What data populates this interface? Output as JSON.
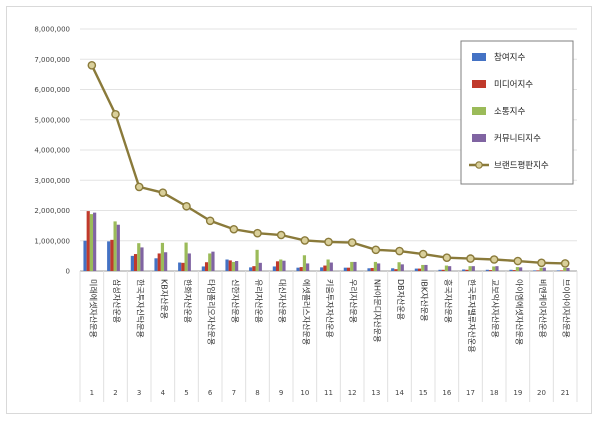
{
  "chart_data": {
    "type": "bar",
    "categories": [
      "미래에셋자산운용",
      "삼성자산운용",
      "한국투자신탁운용",
      "KB자산운용",
      "한화자산운용",
      "타임폴리오자산운용",
      "신한자산운용",
      "유리자산운용",
      "대신자산운용",
      "에셋플러스자산운용",
      "키움투자자산운용",
      "우리자산운용",
      "NH아문디자산운용",
      "DB자산운용",
      "IBK자산운용",
      "흥국자산운용",
      "한국투자밸류자산운용",
      "교보악사자산운용",
      "아이엠에셋자산운용",
      "비엔케이자산운용",
      "브이아이자산운용"
    ],
    "ranks": [
      "1",
      "2",
      "3",
      "4",
      "5",
      "6",
      "7",
      "8",
      "9",
      "10",
      "11",
      "12",
      "13",
      "14",
      "15",
      "16",
      "17",
      "18",
      "19",
      "20",
      "21"
    ],
    "yticks": [
      "0",
      "1,000,000",
      "2,000,000",
      "3,000,000",
      "4,000,000",
      "5,000,000",
      "6,000,000",
      "7,000,000",
      "8,000,000"
    ],
    "ylim": [
      0,
      8000000
    ],
    "series": [
      {
        "name": "참여지수",
        "color": "#4472c4",
        "values": [
          1000000,
          980000,
          500000,
          420000,
          280000,
          150000,
          380000,
          120000,
          150000,
          110000,
          120000,
          110000,
          90000,
          90000,
          80000,
          40000,
          50000,
          40000,
          40000,
          20000,
          20000
        ]
      },
      {
        "name": "미디어지수",
        "color": "#c0392b",
        "values": [
          1980000,
          1030000,
          560000,
          580000,
          270000,
          290000,
          350000,
          160000,
          320000,
          130000,
          180000,
          110000,
          100000,
          60000,
          80000,
          40000,
          40000,
          30000,
          30000,
          20000,
          20000
        ]
      },
      {
        "name": "소통지수",
        "color": "#9bbb59",
        "values": [
          1880000,
          1640000,
          920000,
          930000,
          940000,
          580000,
          300000,
          700000,
          380000,
          520000,
          380000,
          300000,
          300000,
          290000,
          200000,
          180000,
          160000,
          150000,
          130000,
          110000,
          100000
        ]
      },
      {
        "name": "커뮤니티지수",
        "color": "#8064a2",
        "values": [
          1930000,
          1530000,
          780000,
          620000,
          580000,
          640000,
          330000,
          270000,
          340000,
          250000,
          280000,
          300000,
          250000,
          220000,
          200000,
          160000,
          160000,
          160000,
          120000,
          110000,
          100000
        ]
      },
      {
        "name": "브랜드평판지수",
        "color": "#8a7a3a",
        "type": "line",
        "values": [
          6800000,
          5180000,
          2780000,
          2590000,
          2140000,
          1660000,
          1380000,
          1250000,
          1190000,
          1010000,
          960000,
          940000,
          700000,
          660000,
          560000,
          440000,
          410000,
          380000,
          330000,
          270000,
          250000
        ]
      }
    ]
  }
}
